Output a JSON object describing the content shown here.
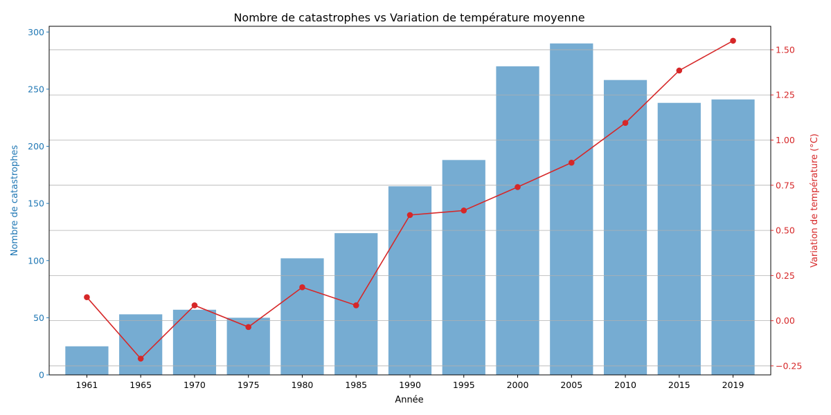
{
  "chart_data": {
    "type": "bar",
    "title": "Nombre de catastrophes vs Variation de température moyenne",
    "xlabel": "Année",
    "ylabel": "Nombre de catastrophes",
    "y2label": "Variation de température (°C)",
    "categories": [
      "1961",
      "1965",
      "1970",
      "1975",
      "1980",
      "1985",
      "1990",
      "1995",
      "2000",
      "2005",
      "2010",
      "2015",
      "2019"
    ],
    "series": [
      {
        "type": "bar",
        "axis": "left",
        "color": "#76acd2",
        "values": [
          25,
          53,
          57,
          50,
          102,
          124,
          165,
          188,
          270,
          290,
          258,
          238,
          241
        ]
      },
      {
        "type": "line",
        "axis": "right",
        "color": "#d62728",
        "values": [
          0.13,
          -0.21,
          0.085,
          -0.035,
          0.185,
          0.085,
          0.585,
          0.61,
          0.74,
          0.875,
          1.095,
          1.385,
          1.55
        ]
      }
    ],
    "ylim": [
      0,
      305
    ],
    "y2lim": [
      -0.3,
      1.63
    ],
    "yticks": [
      0,
      50,
      100,
      150,
      200,
      250,
      300
    ],
    "y2ticks": [
      -0.25,
      0.0,
      0.25,
      0.5,
      0.75,
      1.0,
      1.25,
      1.5
    ],
    "y2tick_labels": [
      "−0.25",
      "0.00",
      "0.25",
      "0.50",
      "0.75",
      "1.00",
      "1.25",
      "1.50"
    ],
    "grid": "horizontal on right axis",
    "left_axis_color": "#1f77b4",
    "right_axis_color": "#d62728"
  }
}
